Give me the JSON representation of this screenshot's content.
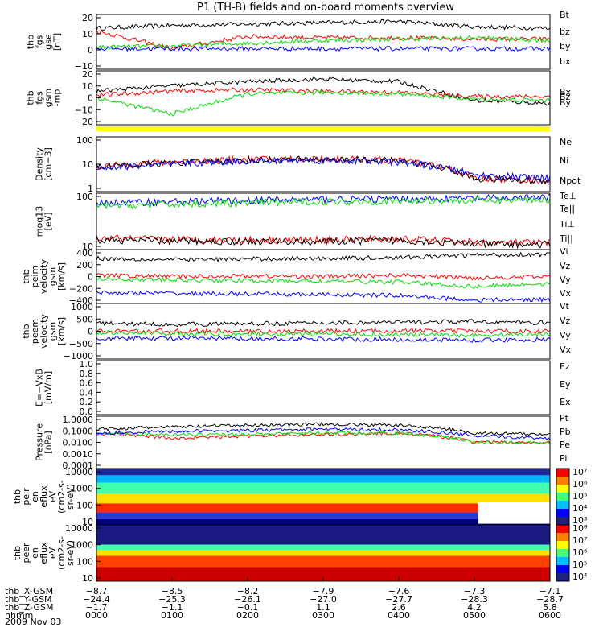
{
  "title": "P1 (TH-B) fields and on-board moments overview",
  "date": "2009 Nov 03",
  "colors": {
    "black": "#000000",
    "red": "#ff0000",
    "green": "#00dd00",
    "blue": "#0000ff",
    "darkred": "#8b0000",
    "yellow": "#ffff00"
  },
  "chart_data": [
    {
      "type": "line",
      "ylabel": [
        "thb",
        "fgs",
        "gse",
        "[nT]"
      ],
      "ylim": [
        -20,
        20
      ],
      "ytick_labels": [
        "20",
        "10",
        "0",
        "−10"
      ],
      "legend": [
        "Bt",
        "bz",
        "by",
        "bx"
      ],
      "series": [
        {
          "name": "Bt",
          "values": [
            10,
            12,
            13,
            14,
            15,
            11,
            10
          ]
        },
        {
          "name": "bz",
          "values": [
            8,
            -5,
            4,
            3,
            3,
            2,
            2
          ]
        },
        {
          "name": "by",
          "values": [
            -4,
            -3,
            -1,
            1,
            2,
            3,
            1
          ]
        },
        {
          "name": "bx",
          "values": [
            -5,
            -5,
            -5,
            -5,
            -5,
            -5,
            -5
          ]
        }
      ]
    },
    {
      "type": "line",
      "ylabel": [
        "thb",
        "fgs",
        "gsm",
        "-mp"
      ],
      "ylim": [
        -20,
        20
      ],
      "ytick_labels": [
        "20",
        "10",
        "0",
        "−10",
        "−20"
      ],
      "legend": [
        "Bx",
        "Bz",
        "By"
      ],
      "series": [
        {
          "name": "Bx",
          "values": [
            5,
            9,
            12,
            14,
            12,
            -2,
            -4
          ]
        },
        {
          "name": "Bz",
          "values": [
            2,
            5,
            6,
            5,
            4,
            1,
            1
          ]
        },
        {
          "name": "By",
          "values": [
            0,
            -12,
            3,
            4,
            3,
            -1,
            -2
          ]
        }
      ]
    },
    {
      "type": "line",
      "ylabel": [
        "Density",
        "[cm−3]"
      ],
      "ylim": [
        1,
        100
      ],
      "scale": "log",
      "ytick_labels": [
        "100",
        "10",
        "1"
      ],
      "legend": [
        "Ne",
        "Ni",
        "Npot"
      ],
      "series": [
        {
          "name": "Ne",
          "values": [
            8,
            12,
            15,
            16,
            14,
            3,
            2.5
          ]
        },
        {
          "name": "Ni",
          "values": [
            8,
            11,
            14,
            15,
            13,
            3,
            2.4
          ]
        },
        {
          "name": "Npot",
          "values": [
            7,
            10,
            13,
            14,
            12,
            4,
            3
          ]
        }
      ]
    },
    {
      "type": "line",
      "ylabel": [
        "moq13",
        "[eV]"
      ],
      "ylim": [
        10,
        1000
      ],
      "scale": "log",
      "ytick_labels": [
        "100",
        "10"
      ],
      "legend": [
        "Te⊥",
        "Te||",
        "Ti⊥",
        "Ti||"
      ],
      "series": [
        {
          "name": "Te⊥",
          "values": [
            25,
            23,
            22,
            22,
            24,
            18,
            17
          ]
        },
        {
          "name": "Te||",
          "values": [
            22,
            20,
            19,
            19,
            21,
            16,
            15
          ]
        },
        {
          "name": "Ti⊥",
          "values": [
            450,
            500,
            550,
            600,
            620,
            650,
            700
          ]
        },
        {
          "name": "Ti||",
          "values": [
            350,
            400,
            450,
            500,
            520,
            550,
            600
          ]
        }
      ]
    },
    {
      "type": "line",
      "ylabel": [
        "thb",
        "peim",
        "velocity",
        "gsm",
        "[km/s]"
      ],
      "ylim": [
        -400,
        400
      ],
      "ytick_labels": [
        "400",
        "200",
        "0",
        "−200",
        "−400"
      ],
      "legend": [
        "Vt",
        "Vz",
        "Vy",
        "Vx"
      ],
      "series": [
        {
          "name": "Vt",
          "values": [
            270,
            250,
            260,
            270,
            280,
            320,
            330
          ]
        },
        {
          "name": "Vz",
          "values": [
            20,
            0,
            10,
            0,
            20,
            -20,
            0
          ]
        },
        {
          "name": "Vy",
          "values": [
            -30,
            -50,
            -60,
            -70,
            -80,
            -150,
            -100
          ]
        },
        {
          "name": "Vx",
          "values": [
            -240,
            -250,
            -260,
            -270,
            -280,
            -350,
            -340
          ]
        }
      ]
    },
    {
      "type": "line",
      "ylabel": [
        "thb",
        "peem",
        "velocity",
        "gsm",
        "[km/s]"
      ],
      "ylim": [
        -1000,
        1000
      ],
      "ytick_labels": [
        "1000",
        "500",
        "0",
        "−500",
        "−1000"
      ],
      "legend": [
        "Vt",
        "Vz",
        "Vy",
        "Vx"
      ],
      "series": [
        {
          "name": "Vt",
          "values": [
            280,
            250,
            270,
            300,
            320,
            350,
            300
          ]
        },
        {
          "name": "Vz",
          "values": [
            0,
            10,
            -10,
            0,
            20,
            0,
            0
          ]
        },
        {
          "name": "Vy",
          "values": [
            -50,
            -80,
            -100,
            -100,
            -120,
            -150,
            -100
          ]
        },
        {
          "name": "Vx",
          "values": [
            -250,
            -250,
            -270,
            -280,
            -300,
            -320,
            -300
          ]
        }
      ]
    },
    {
      "type": "line",
      "ylabel": [
        "E=−VxB",
        "[mV/m]"
      ],
      "ylim": [
        0,
        1
      ],
      "ytick_labels": [
        "1.0",
        "0.8",
        "0.6",
        "0.4",
        "0.2",
        "0.0"
      ],
      "legend": [
        "Ez",
        "Ey",
        "Ex"
      ],
      "series": []
    },
    {
      "type": "line",
      "ylabel": [
        "Pressure",
        "[nPa]"
      ],
      "ylim": [
        0.0001,
        1
      ],
      "scale": "log",
      "ytick_labels": [
        "1.0000",
        "0.1000",
        "0.0100",
        "0.0010",
        "0.0001"
      ],
      "legend": [
        "Pt",
        "Pb",
        "Pe",
        "Pi"
      ],
      "series": [
        {
          "name": "Pt",
          "values": [
            0.1,
            0.15,
            0.2,
            0.25,
            0.2,
            0.05,
            0.04
          ]
        },
        {
          "name": "Pb",
          "values": [
            0.05,
            0.02,
            0.03,
            0.04,
            0.05,
            0.01,
            0.01
          ]
        },
        {
          "name": "Pe",
          "values": [
            0.05,
            0.04,
            0.04,
            0.05,
            0.05,
            0.01,
            0.01
          ]
        },
        {
          "name": "Pi",
          "values": [
            0.05,
            0.07,
            0.08,
            0.1,
            0.09,
            0.03,
            0.02
          ]
        }
      ]
    },
    {
      "type": "heatmap",
      "ylabel": [
        "thb",
        "peir",
        "en",
        "eflux",
        "eV",
        "(cm2-s-",
        "sr-eV)"
      ],
      "ylim": [
        10,
        10000
      ],
      "scale": "log",
      "ytick_labels": [
        "10000",
        "1000",
        "100",
        "10"
      ],
      "colorbar": {
        "labels": [
          "10⁷",
          "10⁶",
          "10⁵",
          "10⁴",
          "10³"
        ]
      }
    },
    {
      "type": "heatmap",
      "ylabel": [
        "thb",
        "peer",
        "en",
        "eflux",
        "eV",
        "(cm2-s-",
        "sr-eV)"
      ],
      "ylim": [
        10,
        10000
      ],
      "scale": "log",
      "ytick_labels": [
        "10000",
        "1000",
        "100",
        "10"
      ],
      "colorbar": {
        "labels": [
          "10⁸",
          "10⁷",
          "10⁶",
          "10⁵",
          "10⁴"
        ]
      }
    }
  ],
  "xaxis": {
    "rows": [
      {
        "label": "thb_X-GSM",
        "values": [
          "−8.7",
          "−8.5",
          "−8.2",
          "−7.9",
          "−7.6",
          "−7.3",
          "−7.1"
        ]
      },
      {
        "label": "thb_Y-GSM",
        "values": [
          "−24.4",
          "−25.3",
          "−26.1",
          "−27.0",
          "−27.7",
          "−28.3",
          "−28.7"
        ]
      },
      {
        "label": "thb_Z-GSM",
        "values": [
          "−1.7",
          "−1.1",
          "−0.1",
          "1.1",
          "2.6",
          "4.2",
          "5.8"
        ]
      },
      {
        "label": "hhmm",
        "values": [
          "0000",
          "0100",
          "0200",
          "0300",
          "0400",
          "0500",
          "0600"
        ]
      }
    ]
  }
}
